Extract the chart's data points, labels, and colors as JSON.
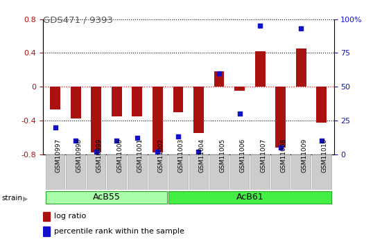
{
  "title": "GDS471 / 9393",
  "categories": [
    "GSM10997",
    "GSM10998",
    "GSM10999",
    "GSM11000",
    "GSM11001",
    "GSM11002",
    "GSM11003",
    "GSM11004",
    "GSM11005",
    "GSM11006",
    "GSM11007",
    "GSM11008",
    "GSM11009",
    "GSM11010"
  ],
  "log_ratio": [
    -0.27,
    -0.38,
    -0.78,
    -0.35,
    -0.35,
    -0.78,
    -0.3,
    -0.55,
    0.18,
    -0.05,
    0.42,
    -0.72,
    0.45,
    -0.43
  ],
  "percentile_rank": [
    20,
    10,
    2,
    10,
    12,
    2,
    13,
    2,
    60,
    30,
    95,
    5,
    93,
    10
  ],
  "groups": [
    {
      "label": "AcB55",
      "start": 0,
      "end": 5
    },
    {
      "label": "AcB61",
      "start": 6,
      "end": 13
    }
  ],
  "ylim_left": [
    -0.8,
    0.8
  ],
  "ylim_right": [
    0,
    100
  ],
  "bar_color": "#AA1111",
  "scatter_color": "#1111CC",
  "group_colors": [
    "#AAFFAA",
    "#44EE44"
  ],
  "plot_bg": "#FFFFFF",
  "title_color": "#555555",
  "bar_width": 0.5,
  "left_ticks": [
    -0.8,
    -0.4,
    0.0,
    0.4,
    0.8
  ],
  "right_ticks": [
    0,
    25,
    50,
    75,
    100
  ],
  "right_tick_labels": [
    "0",
    "25",
    "50",
    "75",
    "100%"
  ]
}
